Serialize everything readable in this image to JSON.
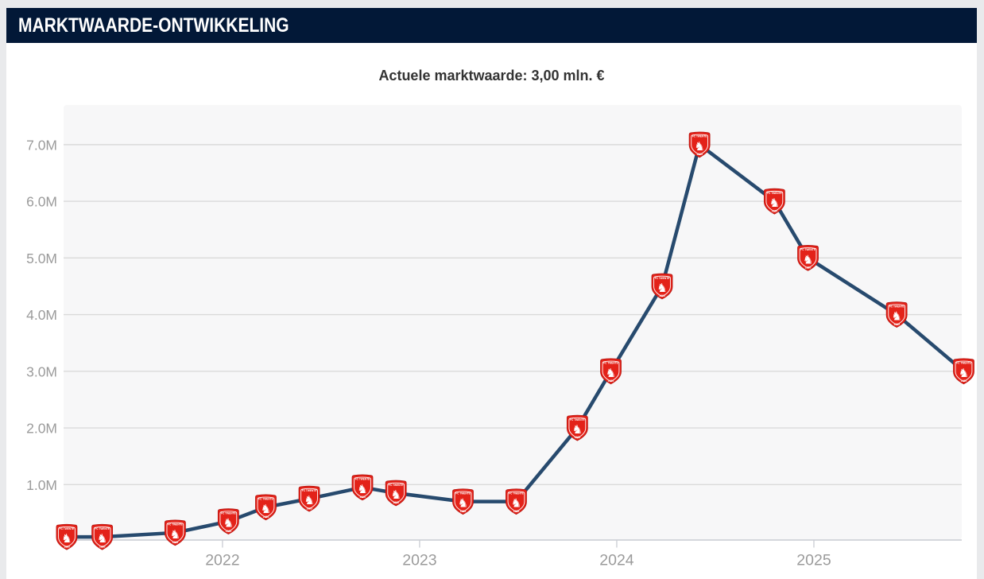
{
  "page": {
    "background": "#e9eaec"
  },
  "panel": {
    "header": {
      "title": "MARKTWAARDE-ONTWIKKELING",
      "background": "#021837",
      "text_color": "#ffffff"
    },
    "subtitle": "Actuele marktwaarde: 3,00 mln. €"
  },
  "chart_data": {
    "type": "line",
    "title": "MARKTWAARDE-ONTWIKKELING",
    "subtitle": "Actuele marktwaarde: 3,00 mln. €",
    "unit": "mln. €",
    "current_value_mln": "3,00",
    "x_tick_labels": [
      "2022",
      "2023",
      "2024",
      "2025"
    ],
    "x_tick_values": [
      2022,
      2023,
      2024,
      2025
    ],
    "y_tick_labels": [
      "1.0M",
      "2.0M",
      "3.0M",
      "4.0M",
      "5.0M",
      "6.0M",
      "7.0M"
    ],
    "y_tick_values": [
      1,
      2,
      3,
      4,
      5,
      6,
      7
    ],
    "xlim": [
      2021.194,
      2025.75
    ],
    "ylim": [
      0,
      7.7
    ],
    "grid": true,
    "legend": "none",
    "marker": "fc-twente-crest",
    "marker_glyph": "♞",
    "marker_top_text": "FC TWENTE",
    "marker_bottom_text": "1965",
    "series": [
      {
        "name": "Marktwaarde",
        "points": [
          {
            "x": 2021.21,
            "y": 0.075
          },
          {
            "x": 2021.39,
            "y": 0.075
          },
          {
            "x": 2021.76,
            "y": 0.15
          },
          {
            "x": 2022.03,
            "y": 0.35
          },
          {
            "x": 2022.22,
            "y": 0.6
          },
          {
            "x": 2022.44,
            "y": 0.75
          },
          {
            "x": 2022.71,
            "y": 0.95
          },
          {
            "x": 2022.88,
            "y": 0.85
          },
          {
            "x": 2023.22,
            "y": 0.7
          },
          {
            "x": 2023.49,
            "y": 0.7
          },
          {
            "x": 2023.8,
            "y": 2.0
          },
          {
            "x": 2023.97,
            "y": 3.0
          },
          {
            "x": 2024.23,
            "y": 4.5
          },
          {
            "x": 2024.42,
            "y": 7.0
          },
          {
            "x": 2024.8,
            "y": 6.0
          },
          {
            "x": 2024.97,
            "y": 5.0
          },
          {
            "x": 2025.42,
            "y": 4.0
          },
          {
            "x": 2025.76,
            "y": 3.0
          }
        ]
      }
    ],
    "colors": {
      "line": "#274a6e",
      "plot_background": "#f7f7f8",
      "gridline": "#dadada",
      "axis": "#c9ccd2",
      "tick_label": "#9b9b9b",
      "marker_fill": "#e32219",
      "marker_border": "#b51510",
      "marker_detail": "#ffffff"
    }
  }
}
